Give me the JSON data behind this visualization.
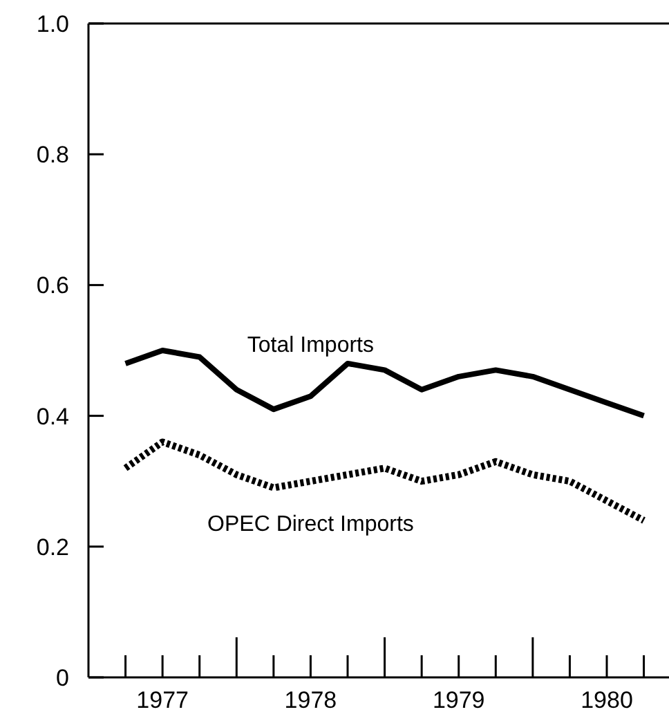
{
  "chart_data": {
    "type": "line",
    "x": [
      1977.25,
      1977.5,
      1977.75,
      1978,
      1978.25,
      1978.5,
      1978.75,
      1979,
      1979.25,
      1979.5,
      1979.75,
      1980,
      1980.25,
      1980.5,
      1980.75
    ],
    "series": [
      {
        "name": "Total Imports",
        "color": "#000000",
        "line_style": "solid",
        "values": [
          0.48,
          0.5,
          0.49,
          0.44,
          0.41,
          0.43,
          0.48,
          0.47,
          0.44,
          0.46,
          0.47,
          0.46,
          0.44,
          0.42,
          0.4
        ]
      },
      {
        "name": "OPEC Direct Imports",
        "color": "#000000",
        "line_style": "dotted",
        "values": [
          0.32,
          0.36,
          0.34,
          0.31,
          0.29,
          0.3,
          0.31,
          0.32,
          0.3,
          0.31,
          0.33,
          0.31,
          0.3,
          0.27,
          0.24
        ]
      }
    ],
    "xlim": [
      1977,
      1980.92
    ],
    "xticks": [
      {
        "value": 1977.25,
        "label": null
      },
      {
        "value": 1977.5,
        "label": "1977"
      },
      {
        "value": 1977.75,
        "label": null
      },
      {
        "value": 1978,
        "label": null
      },
      {
        "value": 1978.25,
        "label": null
      },
      {
        "value": 1978.5,
        "label": "1978"
      },
      {
        "value": 1978.75,
        "label": null
      },
      {
        "value": 1979,
        "label": null
      },
      {
        "value": 1979.25,
        "label": null
      },
      {
        "value": 1979.5,
        "label": "1979"
      },
      {
        "value": 1979.75,
        "label": null
      },
      {
        "value": 1980,
        "label": null
      },
      {
        "value": 1980.25,
        "label": null
      },
      {
        "value": 1980.5,
        "label": "1980"
      },
      {
        "value": 1980.75,
        "label": null
      }
    ],
    "ylim": [
      0,
      1.0
    ],
    "yticks": [
      0,
      {
        "value": 0.2,
        "label": "0.2"
      },
      {
        "value": 0.4,
        "label": "0.4"
      },
      {
        "value": 0.6,
        "label": "0.6"
      },
      {
        "value": 0.8,
        "label": "0.8"
      },
      {
        "value": 1.0,
        "label": "1.0"
      }
    ],
    "grid": false,
    "marker": "none"
  }
}
